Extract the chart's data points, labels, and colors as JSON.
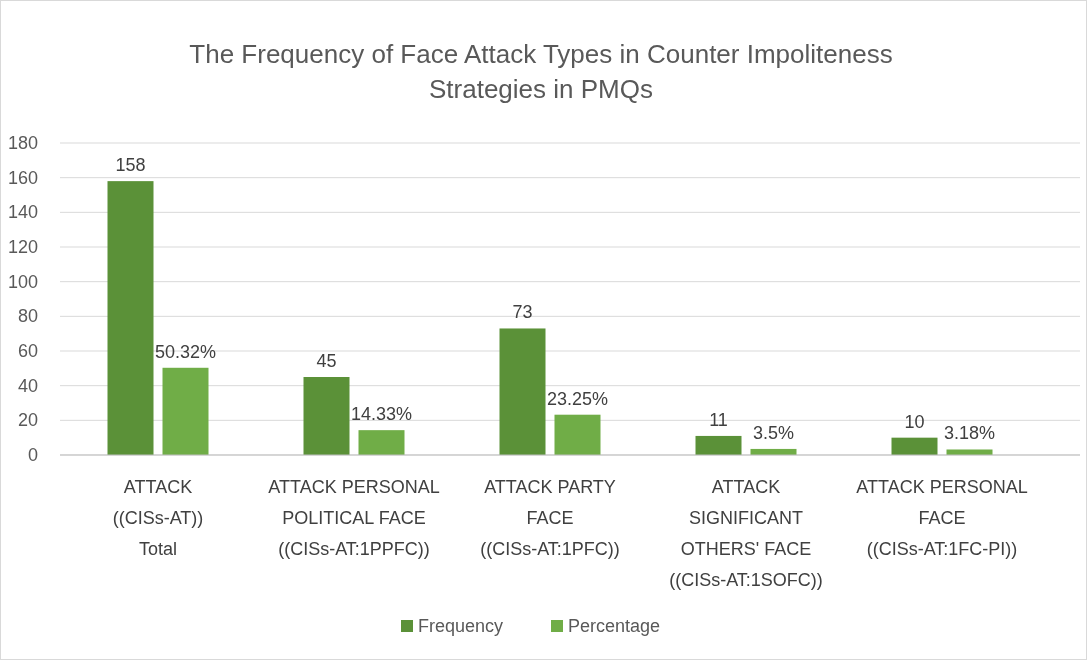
{
  "chart_data": {
    "type": "bar",
    "title": "The Frequency of Face Attack Types in Counter Impoliteness\nStrategies in PMQs",
    "categories": [
      "ATTACK\n((CISs-AT))\nTotal",
      "ATTACK PERSONAL\nPOLITICAL FACE\n((CISs-AT:1PPFC))",
      "ATTACK PARTY\nFACE\n((CISs-AT:1PFC))",
      "ATTACK\nSIGNIFICANT\nOTHERS' FACE\n((CISs-AT:1SOFC))",
      "ATTACK PERSONAL\nFACE\n((CISs-AT:1FC-PI))"
    ],
    "series": [
      {
        "name": "Frequency",
        "color": "#5b9138",
        "values": [
          158,
          45,
          73,
          11,
          10
        ],
        "value_labels": [
          "158",
          "45",
          "73",
          "11",
          "10"
        ]
      },
      {
        "name": "Percentage",
        "color": "#70ad47",
        "values": [
          50.32,
          14.33,
          23.25,
          3.5,
          3.18
        ],
        "value_labels": [
          "50.32%",
          "14.33%",
          "23.25%",
          "3.5%",
          "3.18%"
        ]
      }
    ],
    "ylim": [
      0,
      180
    ],
    "yticks": [
      0,
      20,
      40,
      60,
      80,
      100,
      120,
      140,
      160,
      180
    ],
    "grid": "y",
    "legend": "bottom"
  }
}
